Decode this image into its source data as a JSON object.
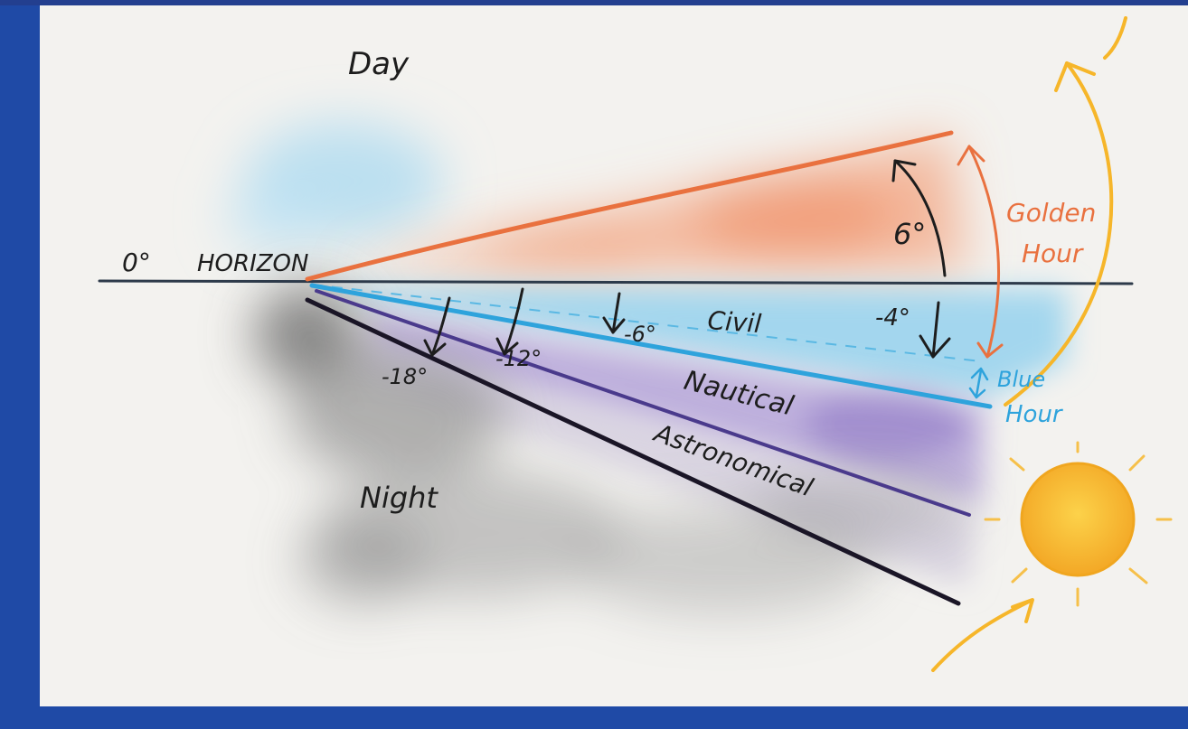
{
  "labels": {
    "day": "Day",
    "night": "Night",
    "zero_deg": "0°",
    "horizon": "HORIZON",
    "six_deg": "6°",
    "minus_four": "-4°",
    "minus_six": "-6°",
    "minus_twelve": "-12°",
    "minus_eighteen": "-18°",
    "civil": "Civil",
    "nautical": "Nautical",
    "astronomical": "Astronomical",
    "golden_hour_line1": "Golden",
    "golden_hour_line2": "Hour",
    "blue_hour_line1": "Blue",
    "blue_hour_line2": "Hour"
  },
  "colors": {
    "frame": "#1f4aa6",
    "paper": "#f3f2ef",
    "golden": "#e9713f",
    "blue": "#2ea3dc",
    "nautical": "#4a3a8c",
    "astronomical": "#1a1526",
    "horizon": "#2d3a4a",
    "sun": "#f6b62a",
    "ink": "#1d1d1d"
  }
}
